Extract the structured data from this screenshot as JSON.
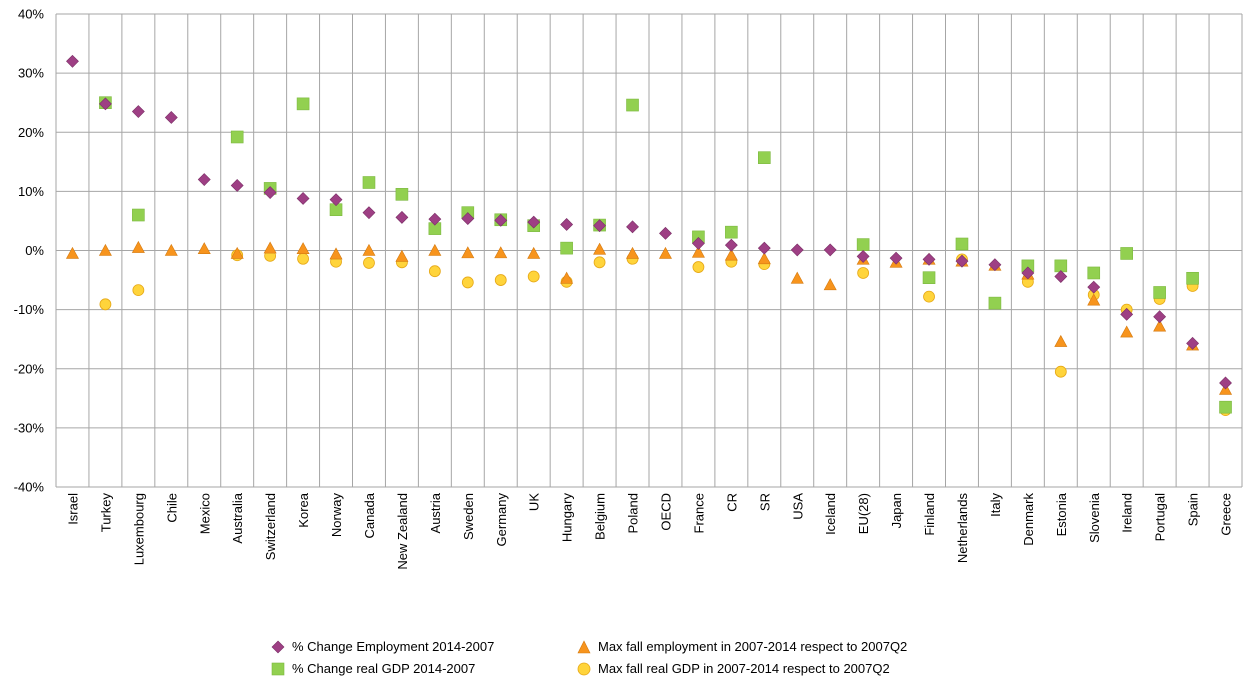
{
  "chart_data": {
    "type": "scatter",
    "title": "",
    "xlabel": "",
    "ylabel": "",
    "ylim": [
      -40,
      40
    ],
    "yticks": [
      "40%",
      "30%",
      "20%",
      "10%",
      "0%",
      "-10%",
      "-20%",
      "-30%",
      "-40%"
    ],
    "ytick_values": [
      40,
      30,
      20,
      10,
      0,
      -10,
      -20,
      -30,
      -40
    ],
    "grid": true,
    "legend_position": "bottom",
    "categories": [
      "Israel",
      "Turkey",
      "Luxembourg",
      "Chile",
      "Mexico",
      "Australia",
      "Switzerland",
      "Korea",
      "Norway",
      "Canada",
      "New Zealand",
      "Austria",
      "Sweden",
      "Germany",
      "UK",
      "Hungary",
      "Belgium",
      "Poland",
      "OECD",
      "France",
      "CR",
      "SR",
      "USA",
      "Iceland",
      "EU(28)",
      "Japan",
      "Finland",
      "Netherlands",
      "Italy",
      "Denmark",
      "Estonia",
      "Slovenia",
      "Ireland",
      "Portugal",
      "Spain",
      "Greece"
    ],
    "series": [
      {
        "name": "% Change Employment 2014-2007",
        "marker": "diamond",
        "color": "#9e3f84",
        "values": [
          32.0,
          24.8,
          23.5,
          22.5,
          12.0,
          11.0,
          9.8,
          8.8,
          8.6,
          6.4,
          5.6,
          5.3,
          5.4,
          5.1,
          4.8,
          4.4,
          4.2,
          4.0,
          2.9,
          1.2,
          0.9,
          0.4,
          0.1,
          0.1,
          -1.0,
          -1.3,
          -1.5,
          -1.8,
          -2.4,
          -3.8,
          -4.4,
          -6.2,
          -10.8,
          -11.2,
          -15.7,
          -22.4
        ]
      },
      {
        "name": "% Change real GDP 2014-2007",
        "marker": "square",
        "color": "#92d050",
        "values": [
          null,
          25.0,
          6.0,
          null,
          null,
          19.2,
          10.5,
          24.8,
          6.9,
          11.5,
          9.5,
          3.7,
          6.4,
          5.2,
          4.2,
          0.4,
          4.3,
          24.6,
          null,
          2.3,
          3.1,
          15.7,
          null,
          null,
          1.0,
          null,
          -4.6,
          1.1,
          -8.9,
          -2.6,
          -2.6,
          -3.8,
          -0.5,
          -7.1,
          -4.7,
          -26.5
        ]
      },
      {
        "name": "Max fall employment in 2007-2014 respect to 2007Q2",
        "marker": "triangle",
        "color": "#f7941d",
        "values": [
          -0.5,
          0.0,
          0.5,
          0.0,
          0.3,
          -0.5,
          0.4,
          0.3,
          -0.6,
          0.0,
          -1.0,
          0.0,
          -0.4,
          -0.4,
          -0.5,
          -4.7,
          0.2,
          -0.5,
          -0.5,
          -0.3,
          -0.8,
          -1.4,
          -4.7,
          -5.8,
          -1.5,
          -2.0,
          -1.5,
          -1.8,
          -2.5,
          -4.0,
          -15.4,
          -8.4,
          -13.8,
          -12.8,
          -16.0,
          -23.5
        ]
      },
      {
        "name": "Max fall real GDP in 2007-2014 respect to 2007Q2",
        "marker": "circle",
        "color": "#ffd43b",
        "values": [
          null,
          -9.1,
          -6.7,
          null,
          null,
          -0.8,
          -0.9,
          -1.4,
          -1.9,
          -2.1,
          -2.0,
          -3.5,
          -5.4,
          -5.0,
          -4.4,
          -5.3,
          -2.0,
          -1.4,
          null,
          -2.8,
          -1.9,
          -2.3,
          null,
          null,
          -3.8,
          null,
          -7.8,
          -1.5,
          null,
          -5.3,
          -20.5,
          -7.5,
          -10.0,
          -8.2,
          -6.0,
          -27.0
        ]
      }
    ]
  }
}
